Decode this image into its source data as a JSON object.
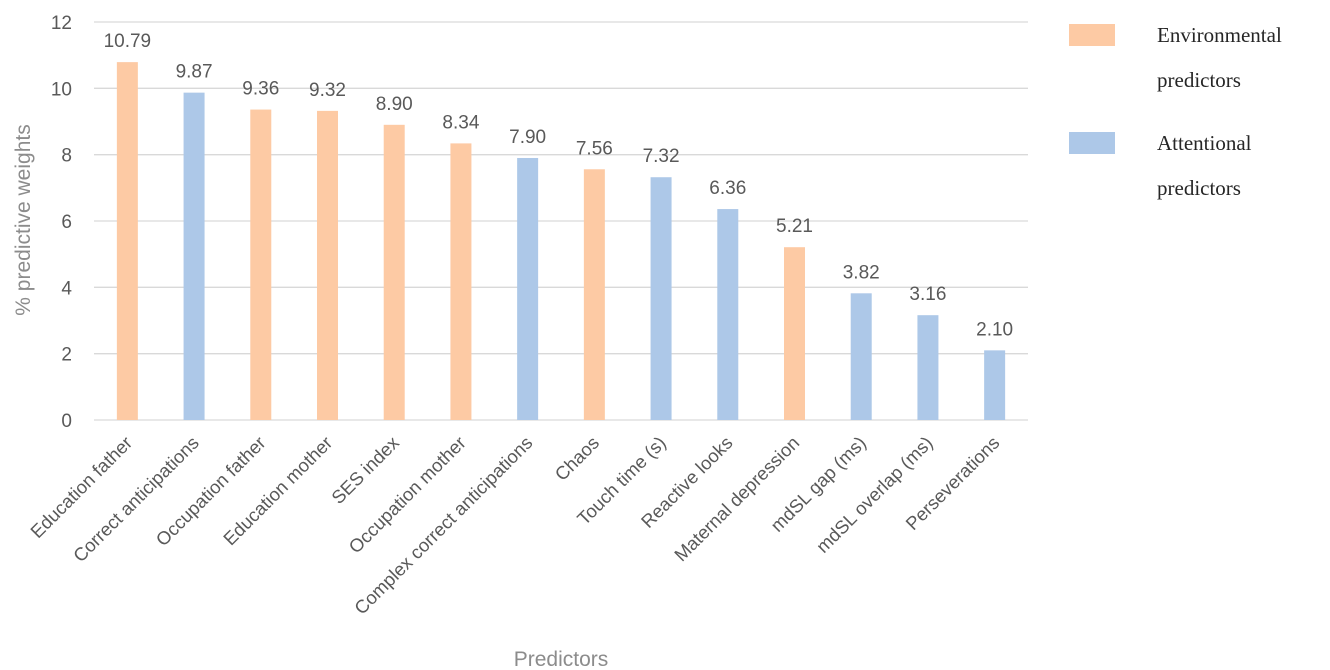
{
  "chart_data": {
    "type": "bar",
    "title": "",
    "xlabel": "Predictors",
    "ylabel": "% predictive weights",
    "ylim": [
      0,
      12
    ],
    "yticks": [
      0,
      2,
      4,
      6,
      8,
      10,
      12
    ],
    "grid": true,
    "legend_position": "right",
    "categories": [
      "Education father",
      "Correct anticipations",
      "Occupation father",
      "Education mother",
      "SES index",
      "Occupation mother",
      "Complex correct anticipations",
      "Chaos",
      "Touch time (s)",
      "Reactive looks",
      "Maternal depression",
      "mdSL gap (ms)",
      "mdSL overlap (ms)",
      "Perseverations"
    ],
    "values": [
      10.79,
      9.87,
      9.36,
      9.32,
      8.9,
      8.34,
      7.9,
      7.56,
      7.32,
      6.36,
      5.21,
      3.82,
      3.16,
      2.1
    ],
    "value_labels": [
      "10.79",
      "9.87",
      "9.36",
      "9.32",
      "8.90",
      "8.34",
      "7.90",
      "7.56",
      "7.32",
      "6.36",
      "5.21",
      "3.82",
      "3.16",
      "2.10"
    ],
    "groups": [
      "environmental",
      "attentional",
      "environmental",
      "environmental",
      "environmental",
      "environmental",
      "attentional",
      "environmental",
      "attentional",
      "attentional",
      "environmental",
      "attentional",
      "attentional",
      "attentional"
    ],
    "legend": [
      {
        "key": "environmental",
        "lines": [
          "Environmental",
          "predictors"
        ],
        "color": "#fdcaa4"
      },
      {
        "key": "attentional",
        "lines": [
          "Attentional",
          "predictors"
        ],
        "color": "#adc8e8"
      }
    ],
    "colors": {
      "grid": "#d9d9d9",
      "axis": "#d9d9d9",
      "text": "#595959"
    }
  }
}
